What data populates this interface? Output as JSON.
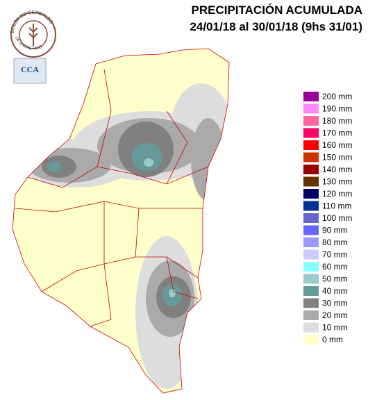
{
  "header": {
    "title": "PRECIPITACIÓN ACUMULADA",
    "period": "24/01/18 al 30/01/18 (9hs 31/01)"
  },
  "logos": {
    "bolsa": "BOLSA DE CEREALES",
    "bolsa_bottom": "DE ENTRE RIOS",
    "cca": "CCA"
  },
  "legend": [
    {
      "label": "200 mm",
      "color": "#990099"
    },
    {
      "label": "190 mm",
      "color": "#ff88ff"
    },
    {
      "label": "180 mm",
      "color": "#ff6699"
    },
    {
      "label": "170 mm",
      "color": "#ff0066"
    },
    {
      "label": "160 mm",
      "color": "#ff0000"
    },
    {
      "label": "150 mm",
      "color": "#cc3300"
    },
    {
      "label": "140 mm",
      "color": "#990000"
    },
    {
      "label": "130 mm",
      "color": "#663300"
    },
    {
      "label": "120 mm",
      "color": "#000066"
    },
    {
      "label": "110 mm",
      "color": "#003399"
    },
    {
      "label": "100 mm",
      "color": "#6666cc"
    },
    {
      "label": "90 mm",
      "color": "#6666ff"
    },
    {
      "label": "80 mm",
      "color": "#9999ff"
    },
    {
      "label": "70 mm",
      "color": "#ccccff"
    },
    {
      "label": "60 mm",
      "color": "#88ffff"
    },
    {
      "label": "50 mm",
      "color": "#99cccc"
    },
    {
      "label": "40 mm",
      "color": "#669999"
    },
    {
      "label": "30 mm",
      "color": "#808080"
    },
    {
      "label": "20 mm",
      "color": "#aaaaaa"
    },
    {
      "label": "10 mm",
      "color": "#dddddd"
    },
    {
      "label": "0 mm",
      "color": "#ffffcc"
    }
  ]
}
